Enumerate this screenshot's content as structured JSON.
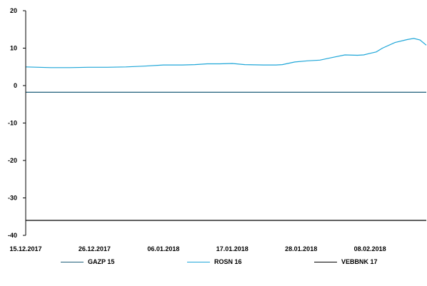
{
  "chart_data": {
    "type": "line",
    "x_tick_labels": [
      "15.12.2017",
      "26.12.2017",
      "06.01.2018",
      "17.01.2018",
      "28.01.2018",
      "08.02.2018"
    ],
    "x_range": [
      "2017-12-15",
      "2018-02-17"
    ],
    "y_ticks": [
      20,
      10,
      0,
      -10,
      -20,
      -30,
      -40
    ],
    "ylim": [
      -40,
      20
    ],
    "grid": false,
    "legend_position": "bottom",
    "series": [
      {
        "name": "GAZP 15",
        "color": "#1f5f7a",
        "x": [
          "2017-12-15",
          "2018-02-17"
        ],
        "y": [
          -1.8,
          -1.8
        ]
      },
      {
        "name": "ROSN 16",
        "color": "#1ea6d8",
        "x": [
          "2017-12-15",
          "2017-12-17",
          "2017-12-19",
          "2017-12-22",
          "2017-12-25",
          "2017-12-28",
          "2017-12-31",
          "2018-01-03",
          "2018-01-06",
          "2018-01-09",
          "2018-01-11",
          "2018-01-13",
          "2018-01-15",
          "2018-01-17",
          "2018-01-19",
          "2018-01-22",
          "2018-01-24",
          "2018-01-25",
          "2018-01-27",
          "2018-01-29",
          "2018-01-31",
          "2018-02-02",
          "2018-02-04",
          "2018-02-06",
          "2018-02-07",
          "2018-02-08",
          "2018-02-09",
          "2018-02-10",
          "2018-02-12",
          "2018-02-14",
          "2018-02-15",
          "2018-02-16",
          "2018-02-17"
        ],
        "y": [
          5.0,
          4.9,
          4.8,
          4.8,
          4.9,
          4.9,
          5.0,
          5.2,
          5.5,
          5.5,
          5.6,
          5.8,
          5.8,
          5.9,
          5.6,
          5.5,
          5.5,
          5.6,
          6.3,
          6.6,
          6.8,
          7.5,
          8.2,
          8.1,
          8.2,
          8.6,
          9.0,
          10.0,
          11.5,
          12.3,
          12.6,
          12.2,
          10.8
        ]
      },
      {
        "name": "VEBBNK 17",
        "color": "#000000",
        "x": [
          "2017-12-15",
          "2018-02-17"
        ],
        "y": [
          -36.0,
          -36.0
        ]
      }
    ]
  }
}
